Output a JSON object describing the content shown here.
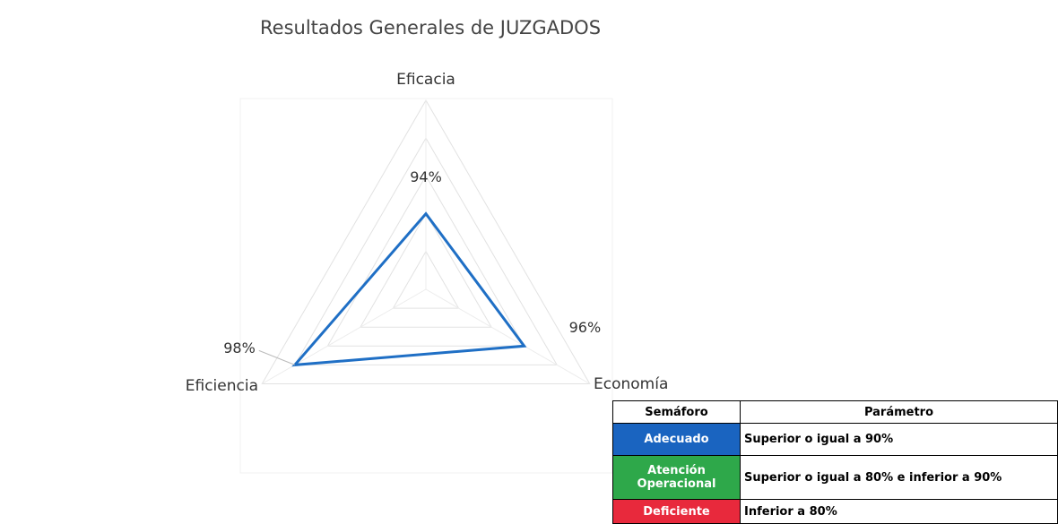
{
  "chart_data": {
    "type": "radar",
    "title": "Resultados Generales de JUZGADOS",
    "categories": [
      "Eficacia",
      "Economía",
      "Eficiencia"
    ],
    "values": [
      94,
      96,
      98
    ],
    "value_labels": [
      "94%",
      "96%",
      "98%"
    ],
    "color": "#1f6fc5",
    "rlim": [
      90,
      100
    ],
    "rticks": [
      90,
      92,
      94,
      96,
      98,
      100
    ],
    "grid": true
  },
  "legend_table": {
    "headers": [
      "Semáforo",
      "Parámetro"
    ],
    "rows": [
      [
        "Adecuado",
        "Superior o igual a 90%"
      ],
      [
        "Atención Operacional",
        "Superior o igual a 80% e inferior a 90%"
      ],
      [
        "Deficiente",
        "Inferior a 80%"
      ]
    ],
    "colors": [
      "#1a64c0",
      "#2ea84a",
      "#e8293c"
    ]
  }
}
